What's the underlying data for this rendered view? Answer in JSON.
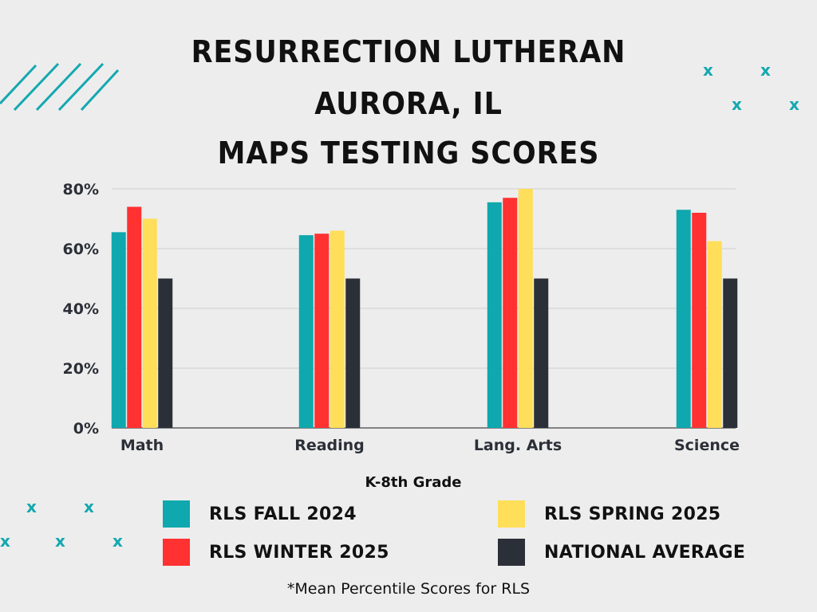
{
  "title_lines": [
    "RESURRECTION LUTHERAN",
    "AURORA, IL",
    "MAPS TESTING SCORES"
  ],
  "footnote": "*Mean Percentile Scores for RLS",
  "decorations": {
    "x_mark": "x"
  },
  "colors": {
    "teal": "#0fa8ae",
    "red": "#ff3131",
    "yellow": "#ffde59",
    "dark": "#2b2f37",
    "background": "#ededed"
  },
  "chart_data": {
    "type": "bar",
    "title": "MAPS TESTING SCORES",
    "xlabel": "K-8th Grade",
    "ylabel": "",
    "categories": [
      "Math",
      "Reading",
      "Lang. Arts",
      "Science"
    ],
    "series": [
      {
        "name": "RLS FALL 2024",
        "color": "#0fa8ae",
        "values": [
          65.5,
          64.5,
          75.5,
          73
        ]
      },
      {
        "name": "RLS WINTER 2025",
        "color": "#ff3131",
        "values": [
          74,
          65,
          77,
          72
        ]
      },
      {
        "name": "RLS SPRING 2025",
        "color": "#ffde59",
        "values": [
          70,
          66,
          80,
          62.5
        ]
      },
      {
        "name": "NATIONAL AVERAGE",
        "color": "#2b2f37",
        "values": [
          50,
          50,
          50,
          50
        ]
      }
    ],
    "ylim": [
      0,
      80
    ],
    "yticks": [
      0,
      20,
      40,
      60,
      80
    ],
    "ytick_labels": [
      "0%",
      "20%",
      "40%",
      "60%",
      "80%"
    ],
    "grid": true,
    "legend_position": "bottom"
  }
}
